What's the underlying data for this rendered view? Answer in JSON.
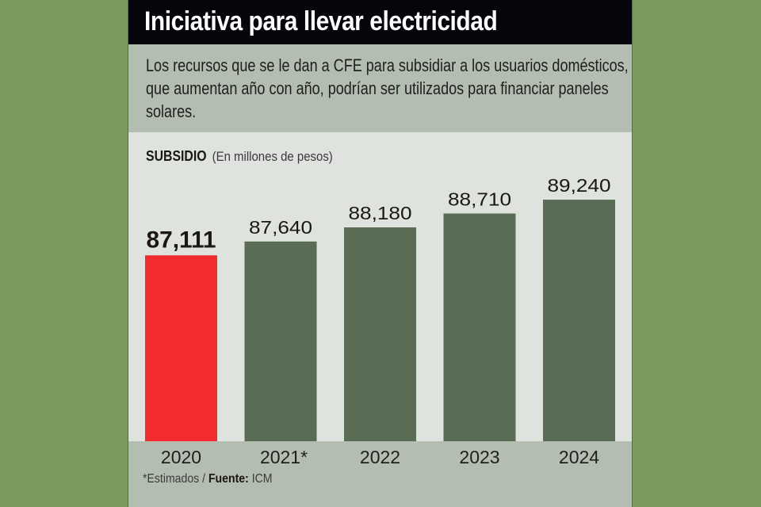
{
  "header": {
    "title": "Iniciativa para llevar electricidad",
    "description": "Los recursos que se le dan a CFE para subsidiar a los usuarios domésticos, que aumentan año con año, podrían ser utilizados para financiar paneles solares."
  },
  "chart_data": {
    "type": "bar",
    "title": "SUBSIDIO",
    "subtitle": "(En millones de pesos)",
    "xlabel": "",
    "ylabel": "",
    "categories": [
      "2020",
      "2021*",
      "2022",
      "2023",
      "2024"
    ],
    "values": [
      87111,
      87640,
      88180,
      88710,
      89240
    ],
    "data_labels": [
      "87,111",
      "87,640",
      "88,180",
      "88,710",
      "89,240"
    ],
    "highlight_index": 0,
    "colors": {
      "highlight": "#f22c2f",
      "default": "#596c54"
    },
    "ylim": [
      80000,
      89500
    ],
    "grid": false,
    "legend": "none"
  },
  "footer": {
    "note": "*Estimados / ",
    "source_label": "Fuente:",
    "source": "ICM"
  }
}
